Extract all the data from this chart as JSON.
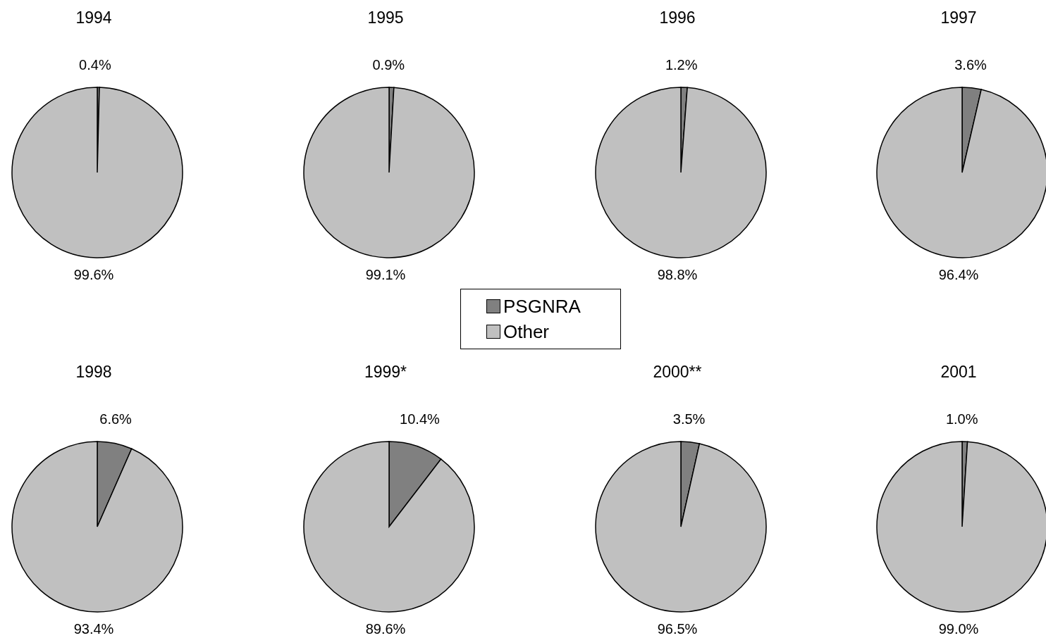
{
  "chart_data": [
    {
      "type": "pie",
      "title": "1994",
      "categories": [
        "PSGNRA",
        "Other"
      ],
      "values": [
        0.4,
        99.6
      ],
      "value_labels": [
        "0.4%",
        "99.6%"
      ],
      "colors": [
        "#808080",
        "#c0c0c0"
      ],
      "legend": "bottom right"
    },
    {
      "type": "pie",
      "title": "1995",
      "categories": [
        null,
        null
      ],
      "values": [
        0.9,
        99.1
      ],
      "value_labels": [
        "0.9%",
        "99.1%"
      ],
      "colors": [
        "#808080",
        "#c0c0c0"
      ]
    },
    {
      "type": "pie",
      "title": "1996",
      "categories": [
        null,
        null
      ],
      "values": [
        1.2,
        98.8
      ],
      "value_labels": [
        "1.2%",
        "98.8%"
      ],
      "colors": [
        "#808080",
        "#c0c0c0"
      ]
    },
    {
      "type": "pie",
      "title": "1997",
      "categories": [
        null,
        null
      ],
      "values": [
        3.6,
        96.4
      ],
      "value_labels": [
        "3.6%",
        "96.4%"
      ],
      "colors": [
        "#808080",
        "#c0c0c0"
      ]
    },
    {
      "type": "pie",
      "title": "1998",
      "categories": [
        null,
        null
      ],
      "values": [
        6.6,
        93.4
      ],
      "value_labels": [
        "6.6%",
        "93.4%"
      ],
      "colors": [
        "#808080",
        "#c0c0c0"
      ]
    },
    {
      "type": "pie",
      "title": "1999*",
      "categories": [
        null,
        null
      ],
      "values": [
        10.4,
        89.6
      ],
      "value_labels": [
        "10.4%",
        "89.6%"
      ],
      "colors": [
        "#808080",
        "#c0c0c0"
      ]
    },
    {
      "type": "pie",
      "title": "2000**",
      "categories": [
        null,
        null
      ],
      "values": [
        3.5,
        96.5
      ],
      "value_labels": [
        "3.5%",
        "96.5%"
      ],
      "colors": [
        "#808080",
        "#c0c0c0"
      ]
    },
    {
      "type": "pie",
      "title": "2001",
      "categories": [
        null,
        null
      ],
      "values": [
        1.0,
        99.0
      ],
      "value_labels": [
        "1.0%",
        "99.0%"
      ],
      "colors": [
        "#808080",
        "#c0c0c0"
      ]
    }
  ]
}
